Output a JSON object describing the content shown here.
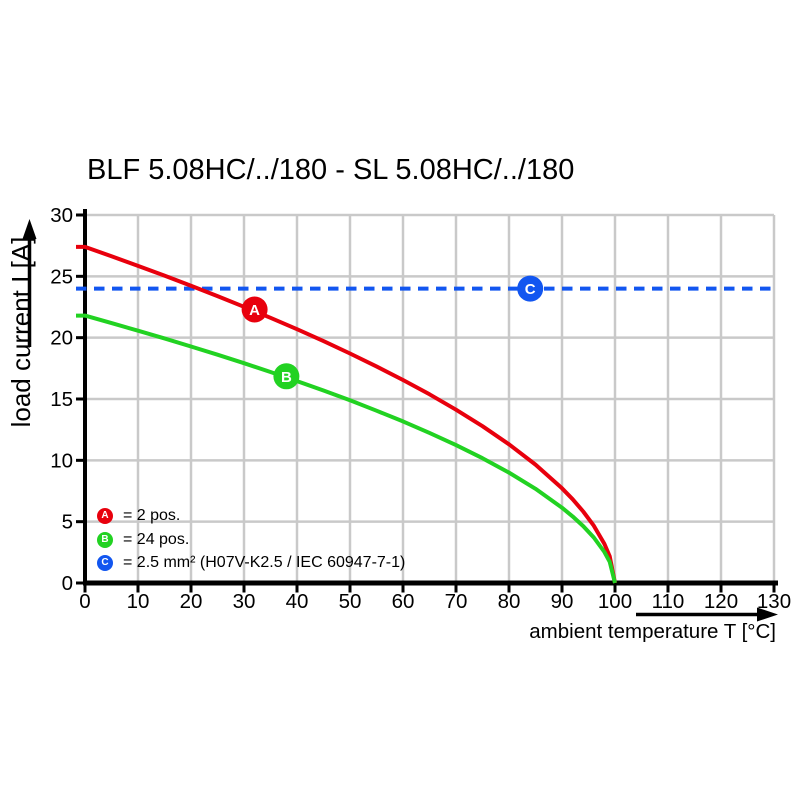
{
  "chart_data": {
    "type": "line",
    "title": "BLF 5.08HC/../180 - SL 5.08HC/../180",
    "xlabel": "ambient temperature T [°C]",
    "ylabel": "load current I [A]",
    "xlim": [
      0,
      130
    ],
    "ylim": [
      0,
      30
    ],
    "x_ticks": [
      0,
      10,
      20,
      30,
      40,
      50,
      60,
      70,
      80,
      90,
      100,
      110,
      120,
      130
    ],
    "y_ticks": [
      0,
      5,
      10,
      15,
      20,
      25,
      30
    ],
    "grid": "on",
    "x": [
      0,
      5,
      10,
      15,
      20,
      25,
      30,
      35,
      40,
      45,
      50,
      55,
      60,
      65,
      70,
      75,
      80,
      85,
      90,
      92,
      94,
      96,
      98,
      99,
      100
    ],
    "series": [
      {
        "id": "A",
        "legend": "= 2 pos.",
        "color": "#e8000d",
        "style": "solid",
        "values": [
          27.4,
          26.64,
          25.85,
          25.06,
          24.24,
          23.39,
          22.52,
          21.62,
          20.69,
          19.72,
          18.71,
          17.66,
          16.55,
          15.38,
          14.13,
          12.78,
          11.31,
          9.65,
          7.72,
          6.83,
          5.83,
          4.67,
          3.19,
          2.18,
          0
        ]
      },
      {
        "id": "B",
        "legend": "= 24 pos.",
        "color": "#22d222",
        "style": "solid",
        "values": [
          21.8,
          21.19,
          20.57,
          19.94,
          19.28,
          18.61,
          17.92,
          17.2,
          16.46,
          15.69,
          14.89,
          14.05,
          13.17,
          12.24,
          11.24,
          10.17,
          9.0,
          7.68,
          6.14,
          5.43,
          4.64,
          3.71,
          2.53,
          1.73,
          0
        ]
      },
      {
        "id": "C",
        "legend": "= 2.5 mm² (H07V-K2.5 / IEC 60947-7-1)",
        "color": "#1256f0",
        "style": "dashed",
        "hline_value": 24
      }
    ],
    "markers": [
      {
        "label": "A",
        "T": 32,
        "I": 22.3,
        "color": "#e8000d"
      },
      {
        "label": "B",
        "T": 38,
        "I": 16.85,
        "color": "#22d222"
      },
      {
        "label": "C",
        "T": 84,
        "I": 24,
        "color": "#1256f0"
      }
    ],
    "colors": {
      "grid": "#c9c9c9",
      "axis": "#000000",
      "text": "#000000"
    }
  }
}
